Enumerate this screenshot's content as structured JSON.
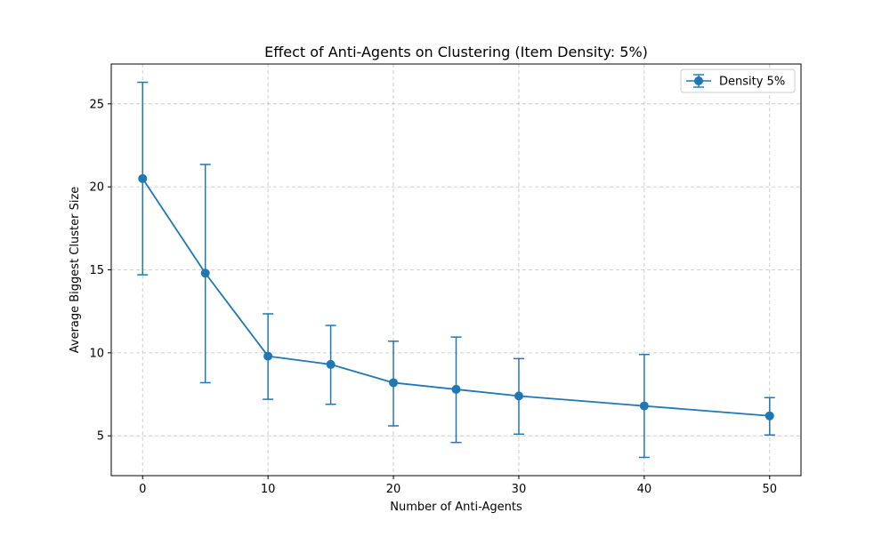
{
  "chart_data": {
    "type": "line",
    "title": "Effect of Anti-Agents on Clustering (Item Density: 5%)",
    "xlabel": "Number of Anti-Agents",
    "ylabel": "Average Biggest Cluster Size",
    "xlim": [
      -2.5,
      52.5
    ],
    "ylim": [
      2.6,
      27.4
    ],
    "xticks": [
      0,
      10,
      20,
      30,
      40,
      50
    ],
    "yticks": [
      5,
      10,
      15,
      20,
      25
    ],
    "grid": true,
    "grid_style": "dashed",
    "legend_position": "top-right",
    "series": [
      {
        "name": "Density 5%",
        "color": "#1f77b4",
        "marker": "circle",
        "error_bars": true,
        "x": [
          0,
          5,
          10,
          15,
          20,
          25,
          30,
          40,
          50
        ],
        "y": [
          20.5,
          14.8,
          9.8,
          9.3,
          8.2,
          7.8,
          7.4,
          6.8,
          6.2
        ],
        "err_low": [
          14.7,
          8.2,
          7.2,
          6.9,
          5.6,
          4.6,
          5.1,
          3.7,
          5.05
        ],
        "err_high": [
          26.3,
          21.35,
          12.35,
          11.65,
          10.7,
          10.95,
          9.65,
          9.9,
          7.3
        ]
      }
    ]
  }
}
